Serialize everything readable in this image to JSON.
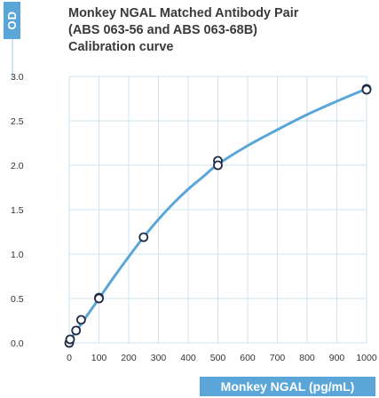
{
  "panel_tag": "OD",
  "title_lines": [
    "Monkey NGAL Matched Antibody Pair",
    "(ABS 063-56 and ABS 063-68B)",
    "Calibration curve"
  ],
  "colors": {
    "accent": "#5aa6d9",
    "curve": "#5aa6d9",
    "grid": "#cfe3f1",
    "marker_stroke": "#1f2a44"
  },
  "chart_data": {
    "type": "scatter",
    "title": "Monkey NGAL Matched Antibody Pair (ABS 063-56 and ABS 063-68B) Calibration curve",
    "xlabel": "Monkey NGAL (pg/mL)",
    "ylabel": "OD",
    "xlim": [
      0,
      1000
    ],
    "ylim": [
      0,
      3.0
    ],
    "xticks": [
      0,
      100,
      200,
      300,
      400,
      500,
      600,
      700,
      800,
      900,
      1000
    ],
    "yticks": [
      0.0,
      0.5,
      1.0,
      1.5,
      2.0,
      2.5,
      3.0
    ],
    "ytick_labels": [
      "0.0",
      "0.5",
      "1.0",
      "1.5",
      "2.0",
      "2.5",
      "3.0"
    ],
    "grid": true,
    "series": [
      {
        "points": [
          {
            "x": 0,
            "y": 0.0
          },
          {
            "x": 3,
            "y": 0.04
          },
          {
            "x": 23,
            "y": 0.14
          },
          {
            "x": 40,
            "y": 0.26
          },
          {
            "x": 100,
            "y": 0.51
          },
          {
            "x": 100,
            "y": 0.5
          },
          {
            "x": 250,
            "y": 1.19
          },
          {
            "x": 500,
            "y": 2.05
          },
          {
            "x": 500,
            "y": 2.0
          },
          {
            "x": 1000,
            "y": 2.86
          },
          {
            "x": 1000,
            "y": 2.85
          }
        ],
        "fit_curve": [
          {
            "x": 0,
            "y": 0.02
          },
          {
            "x": 50,
            "y": 0.26
          },
          {
            "x": 100,
            "y": 0.5
          },
          {
            "x": 150,
            "y": 0.74
          },
          {
            "x": 200,
            "y": 0.97
          },
          {
            "x": 250,
            "y": 1.19
          },
          {
            "x": 300,
            "y": 1.39
          },
          {
            "x": 350,
            "y": 1.57
          },
          {
            "x": 400,
            "y": 1.73
          },
          {
            "x": 450,
            "y": 1.87
          },
          {
            "x": 500,
            "y": 2.01
          },
          {
            "x": 600,
            "y": 2.22
          },
          {
            "x": 700,
            "y": 2.4
          },
          {
            "x": 800,
            "y": 2.57
          },
          {
            "x": 900,
            "y": 2.72
          },
          {
            "x": 1000,
            "y": 2.86
          }
        ]
      }
    ]
  }
}
